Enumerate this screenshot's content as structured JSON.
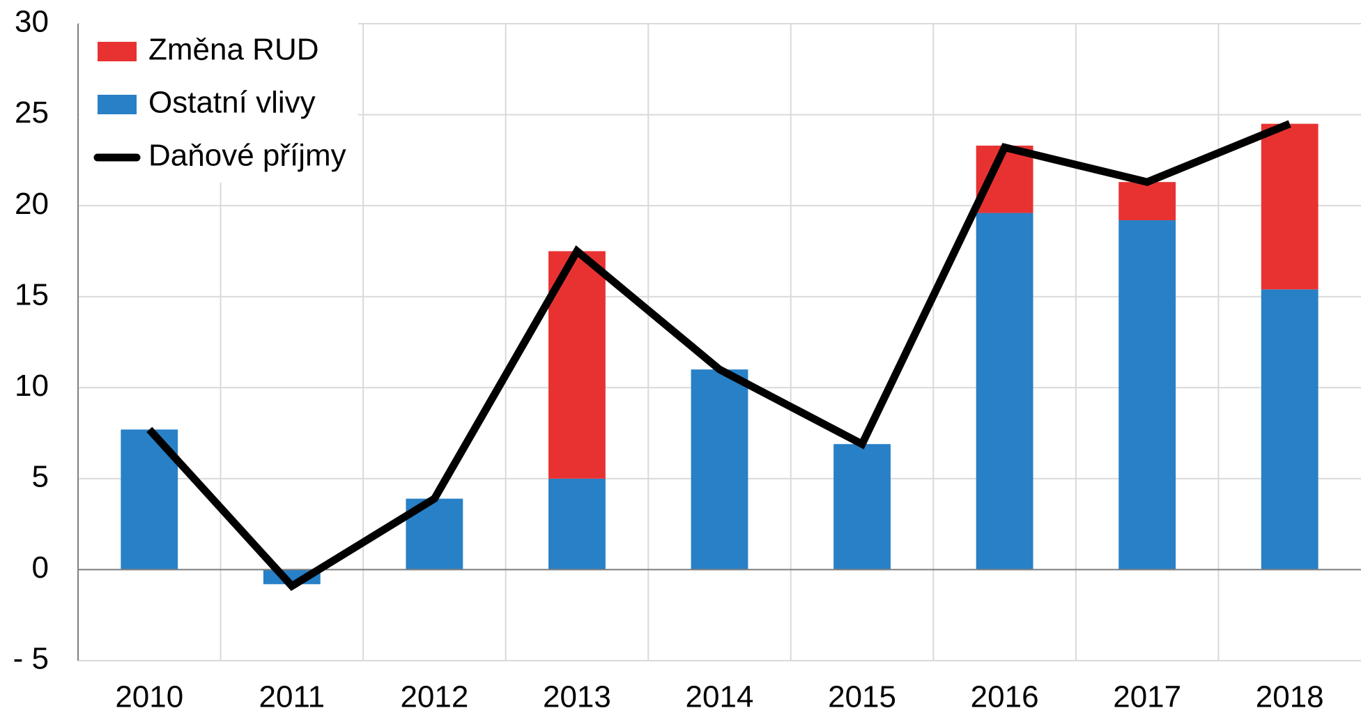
{
  "chart_data": {
    "type": "bar",
    "categories": [
      "2010",
      "2011",
      "2012",
      "2013",
      "2014",
      "2015",
      "2016",
      "2017",
      "2018"
    ],
    "series": [
      {
        "name": "Ostatní vlivy",
        "type": "bar",
        "color": "#2880c6",
        "values": [
          7.7,
          -0.8,
          3.9,
          5.0,
          11.0,
          6.9,
          19.6,
          19.2,
          15.4
        ]
      },
      {
        "name": "Změna RUD",
        "type": "bar",
        "color": "#e83232",
        "values": [
          0,
          0,
          0,
          12.5,
          0,
          0,
          3.7,
          2.1,
          9.1
        ]
      },
      {
        "name": "Daňové příjmy",
        "type": "line",
        "color": "#000000",
        "values": [
          7.7,
          -0.9,
          3.9,
          17.5,
          11.0,
          6.9,
          23.2,
          21.3,
          24.5
        ]
      }
    ],
    "stacked": true,
    "ylim": [
      -5,
      30
    ],
    "yticks": [
      {
        "value": -5,
        "label": "- 5"
      },
      0,
      5,
      10,
      15,
      20,
      25,
      30
    ],
    "grid": true,
    "legend": "upper left"
  }
}
